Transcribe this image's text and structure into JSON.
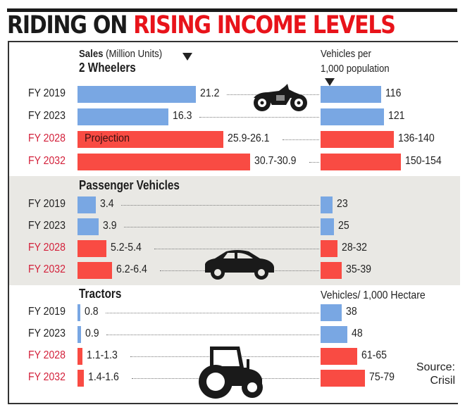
{
  "title": {
    "part1": "RIDING ON ",
    "part2": "RISING INCOME LEVELS"
  },
  "colors": {
    "historical": "#79a7e3",
    "projection": "#f94b43",
    "title_red": "#e8131a",
    "projection_label": "#d3203a",
    "band": "#e9e8e4"
  },
  "header": {
    "sales_bold": "Sales",
    "sales_rest": " (Million Units)",
    "density_line1": "Vehicles per",
    "density_line2": "1,000 population"
  },
  "projection_label": "Projection",
  "source": {
    "line1": "Source:",
    "line2": "Crisil"
  },
  "chart_data": [
    {
      "type": "bar",
      "title": "2 Wheelers",
      "icon": "motorcycle-icon",
      "categories": [
        "FY 2019",
        "FY 2023",
        "FY 2028",
        "FY 2032"
      ],
      "projected": [
        false,
        false,
        true,
        true
      ],
      "sales": {
        "label": "Sales (Million Units)",
        "values": [
          21.2,
          16.3,
          26.1,
          30.9
        ],
        "labels": [
          "21.2",
          "16.3",
          "25.9-26.1",
          "30.7-30.9"
        ]
      },
      "density": {
        "label": "Vehicles per 1,000 population",
        "values": [
          116,
          121,
          140,
          154
        ],
        "labels": [
          "116",
          "121",
          "136-140",
          "150-154"
        ]
      }
    },
    {
      "type": "bar",
      "title": "Passenger Vehicles",
      "icon": "car-icon",
      "categories": [
        "FY 2019",
        "FY 2023",
        "FY 2028",
        "FY 2032"
      ],
      "projected": [
        false,
        false,
        true,
        true
      ],
      "sales": {
        "label": "Sales (Million Units)",
        "values": [
          3.4,
          3.9,
          5.4,
          6.4
        ],
        "labels": [
          "3.4",
          "3.9",
          "5.2-5.4",
          "6.2-6.4"
        ]
      },
      "density": {
        "label": "Vehicles per 1,000 population",
        "values": [
          23,
          25,
          32,
          39
        ],
        "labels": [
          "23",
          "25",
          "28-32",
          "35-39"
        ]
      }
    },
    {
      "type": "bar",
      "title": "Tractors",
      "icon": "tractor-icon",
      "density_header": "Vehicles/ 1,000 Hectare",
      "categories": [
        "FY 2019",
        "FY 2023",
        "FY 2028",
        "FY 2032"
      ],
      "projected": [
        false,
        false,
        true,
        true
      ],
      "sales": {
        "label": "Sales (Million Units)",
        "values": [
          0.8,
          0.9,
          1.3,
          1.6
        ],
        "labels": [
          "0.8",
          "0.9",
          "1.1-1.3",
          "1.4-1.6"
        ]
      },
      "density": {
        "label": "Vehicles/ 1,000 Hectare",
        "values": [
          38,
          48,
          65,
          79
        ],
        "labels": [
          "38",
          "48",
          "61-65",
          "75-79"
        ]
      }
    }
  ]
}
